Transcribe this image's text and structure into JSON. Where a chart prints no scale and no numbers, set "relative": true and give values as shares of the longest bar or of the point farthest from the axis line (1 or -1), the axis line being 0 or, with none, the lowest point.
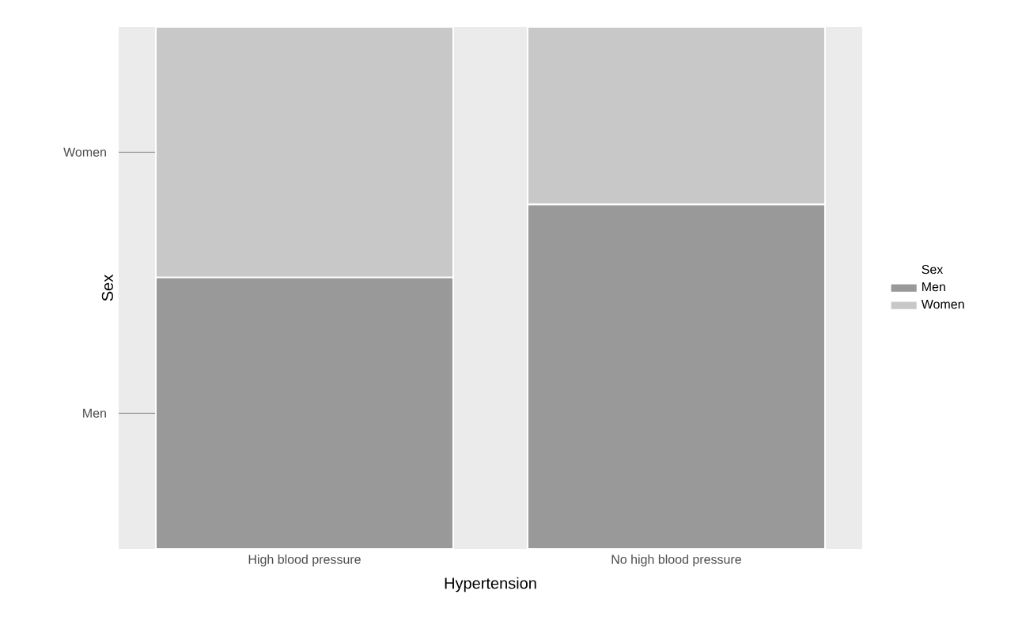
{
  "chart_data": {
    "type": "bar",
    "stacked": true,
    "relative": true,
    "xlabel": "Hypertension",
    "ylabel": "Sex",
    "legend_title": "Sex",
    "legend": "right",
    "categories": [
      "High blood pressure",
      "No high blood pressure"
    ],
    "series": [
      {
        "name": "Men",
        "color": "#999999",
        "values": [
          0.52,
          0.66
        ]
      },
      {
        "name": "Women",
        "color": "#c8c8c8",
        "values": [
          0.48,
          0.34
        ]
      }
    ],
    "annotations": [
      "Men",
      "Women"
    ]
  }
}
